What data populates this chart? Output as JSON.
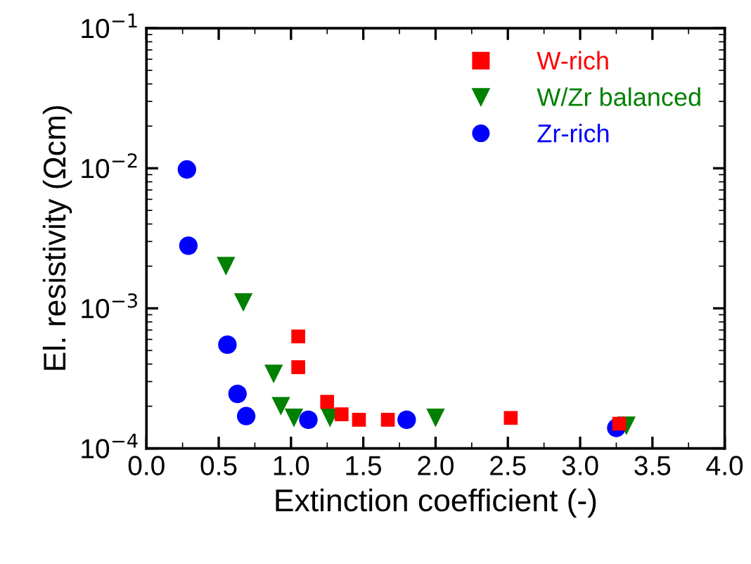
{
  "chart_data": {
    "type": "scatter",
    "xlabel": "Extinction coefficient (-)",
    "ylabel": "El. resistivity (Ωcm)",
    "log": "y",
    "xlim": [
      0,
      4
    ],
    "ylim": [
      0.0001,
      0.1
    ],
    "xticks": [
      {
        "value": 0,
        "label": "0.0"
      },
      {
        "value": 0.5,
        "label": "0.5"
      },
      {
        "value": 1,
        "label": "1.0"
      },
      {
        "value": 1.5,
        "label": "1.5"
      },
      {
        "value": 2,
        "label": "2.0"
      },
      {
        "value": 2.5,
        "label": "2.5"
      },
      {
        "value": 3,
        "label": "3.0"
      },
      {
        "value": 3.5,
        "label": "3.5"
      },
      {
        "value": 4,
        "label": "4.0"
      }
    ],
    "yticks": [
      {
        "value": 0.0001,
        "label": "10$^{−4}$"
      },
      {
        "value": 0.001,
        "label": "10$^{−3}$"
      },
      {
        "value": 0.01,
        "label": "10$^{−2}$"
      },
      {
        "value": 0.1,
        "label": "10$^{−1}$"
      }
    ],
    "legend": "top right",
    "grid": false,
    "series": [
      {
        "name": "W-rich",
        "color": "#ff0000",
        "marker": "square",
        "x": [
          1.05,
          1.05,
          1.25,
          1.35,
          1.47,
          1.67,
          2.52,
          3.27
        ],
        "values": [
          0.00063,
          0.00038,
          0.000215,
          0.000175,
          0.00016,
          0.00016,
          0.000165,
          0.00015
        ]
      },
      {
        "name": "W/Zr balanced",
        "color": "#008000",
        "marker": "triangle",
        "x": [
          0.55,
          0.67,
          0.88,
          0.93,
          1.02,
          1.27,
          2.0,
          3.32
        ],
        "values": [
          0.002,
          0.0011,
          0.00034,
          0.0002,
          0.000165,
          0.000165,
          0.000165,
          0.000145
        ]
      },
      {
        "name": "Zr-rich",
        "color": "#0000ff",
        "marker": "circle",
        "x": [
          0.28,
          0.29,
          0.56,
          0.63,
          0.69,
          1.12,
          1.8,
          3.25
        ],
        "values": [
          0.0098,
          0.0028,
          0.00055,
          0.000245,
          0.00017,
          0.00016,
          0.00016,
          0.00014
        ]
      }
    ]
  }
}
